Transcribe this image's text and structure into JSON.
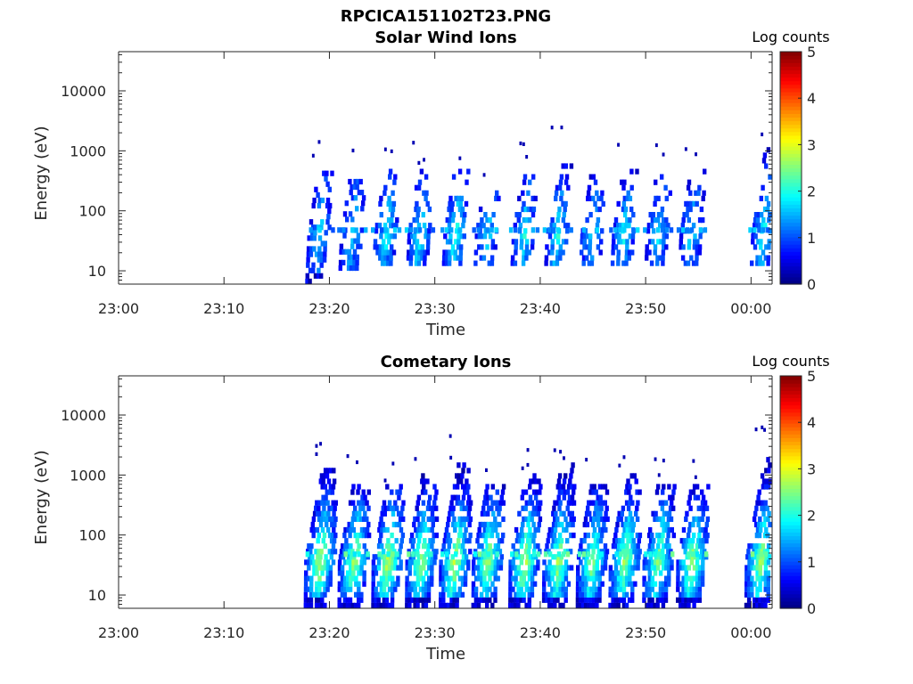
{
  "figure_title": "RPCICA151102T23.PNG",
  "chart_data": [
    {
      "type": "heatmap",
      "title": "Solar Wind Ions",
      "xlabel": "Time",
      "ylabel": "Energy (eV)",
      "x_ticks": [
        "23:00",
        "23:10",
        "23:20",
        "23:30",
        "23:40",
        "23:50",
        "00:00"
      ],
      "xlim": [
        "23:00",
        "00:02"
      ],
      "y_scale": "log",
      "y_ticks": [
        "10",
        "100",
        "1000",
        "10000"
      ],
      "ylim": [
        6,
        45000
      ],
      "colorbar": {
        "label": "Log counts",
        "range": [
          0,
          5
        ],
        "ticks": [
          "0",
          "1",
          "2",
          "3",
          "4",
          "5"
        ],
        "colormap": "jet"
      },
      "bursts": [
        {
          "time": "23:18.9",
          "e_low": 6,
          "e_high": 450,
          "peak_log_counts": 1.8
        },
        {
          "time": "23:22.0",
          "e_low": 10,
          "e_high": 320,
          "peak_log_counts": 1.8
        },
        {
          "time": "23:25.2",
          "e_low": 12,
          "e_high": 450,
          "peak_log_counts": 2.0
        },
        {
          "time": "23:28.4",
          "e_low": 12,
          "e_high": 450,
          "peak_log_counts": 2.0
        },
        {
          "time": "23:31.8",
          "e_low": 12,
          "e_high": 450,
          "peak_log_counts": 2.2
        },
        {
          "time": "23:34.8",
          "e_low": 12,
          "e_high": 200,
          "peak_log_counts": 1.8
        },
        {
          "time": "23:38.3",
          "e_low": 12,
          "e_high": 450,
          "peak_log_counts": 2.0
        },
        {
          "time": "23:41.5",
          "e_low": 12,
          "e_high": 900,
          "peak_log_counts": 2.0
        },
        {
          "time": "23:44.8",
          "e_low": 12,
          "e_high": 500,
          "peak_log_counts": 1.8
        },
        {
          "time": "23:47.8",
          "e_low": 12,
          "e_high": 450,
          "peak_log_counts": 2.0
        },
        {
          "time": "23:51.0",
          "e_low": 12,
          "e_high": 400,
          "peak_log_counts": 1.8
        },
        {
          "time": "23:54.2",
          "e_low": 12,
          "e_high": 450,
          "peak_log_counts": 1.8
        },
        {
          "time": "00:01.0",
          "e_low": 12,
          "e_high": 950,
          "peak_log_counts": 2.0
        }
      ]
    },
    {
      "type": "heatmap",
      "title": "Cometary Ions",
      "xlabel": "Time",
      "ylabel": "Energy (eV)",
      "x_ticks": [
        "23:00",
        "23:10",
        "23:20",
        "23:30",
        "23:40",
        "23:50",
        "00:00"
      ],
      "xlim": [
        "23:00",
        "00:02"
      ],
      "y_scale": "log",
      "y_ticks": [
        "10",
        "100",
        "1000",
        "10000"
      ],
      "ylim": [
        6,
        45000
      ],
      "colorbar": {
        "label": "Log counts",
        "range": [
          0,
          5
        ],
        "ticks": [
          "0",
          "1",
          "2",
          "3",
          "4",
          "5"
        ],
        "colormap": "jet"
      },
      "bursts": [
        {
          "time": "23:19.0",
          "e_low": 6,
          "e_high": 1200,
          "peak_log_counts": 2.8
        },
        {
          "time": "23:22.2",
          "e_low": 6,
          "e_high": 700,
          "peak_log_counts": 2.7
        },
        {
          "time": "23:25.4",
          "e_low": 6,
          "e_high": 600,
          "peak_log_counts": 2.9
        },
        {
          "time": "23:28.6",
          "e_low": 6,
          "e_high": 900,
          "peak_log_counts": 2.8
        },
        {
          "time": "23:31.8",
          "e_low": 6,
          "e_high": 1400,
          "peak_log_counts": 2.9
        },
        {
          "time": "23:34.9",
          "e_low": 6,
          "e_high": 700,
          "peak_log_counts": 2.7
        },
        {
          "time": "23:38.4",
          "e_low": 6,
          "e_high": 900,
          "peak_log_counts": 2.9
        },
        {
          "time": "23:41.6",
          "e_low": 6,
          "e_high": 1500,
          "peak_log_counts": 2.8
        },
        {
          "time": "23:44.8",
          "e_low": 6,
          "e_high": 700,
          "peak_log_counts": 2.6
        },
        {
          "time": "23:47.9",
          "e_low": 6,
          "e_high": 1000,
          "peak_log_counts": 2.7
        },
        {
          "time": "23:51.1",
          "e_low": 6,
          "e_high": 600,
          "peak_log_counts": 2.6
        },
        {
          "time": "23:54.3",
          "e_low": 6,
          "e_high": 700,
          "peak_log_counts": 2.8
        },
        {
          "time": "00:00.8",
          "e_low": 6,
          "e_high": 1900,
          "peak_log_counts": 2.7
        }
      ]
    }
  ]
}
